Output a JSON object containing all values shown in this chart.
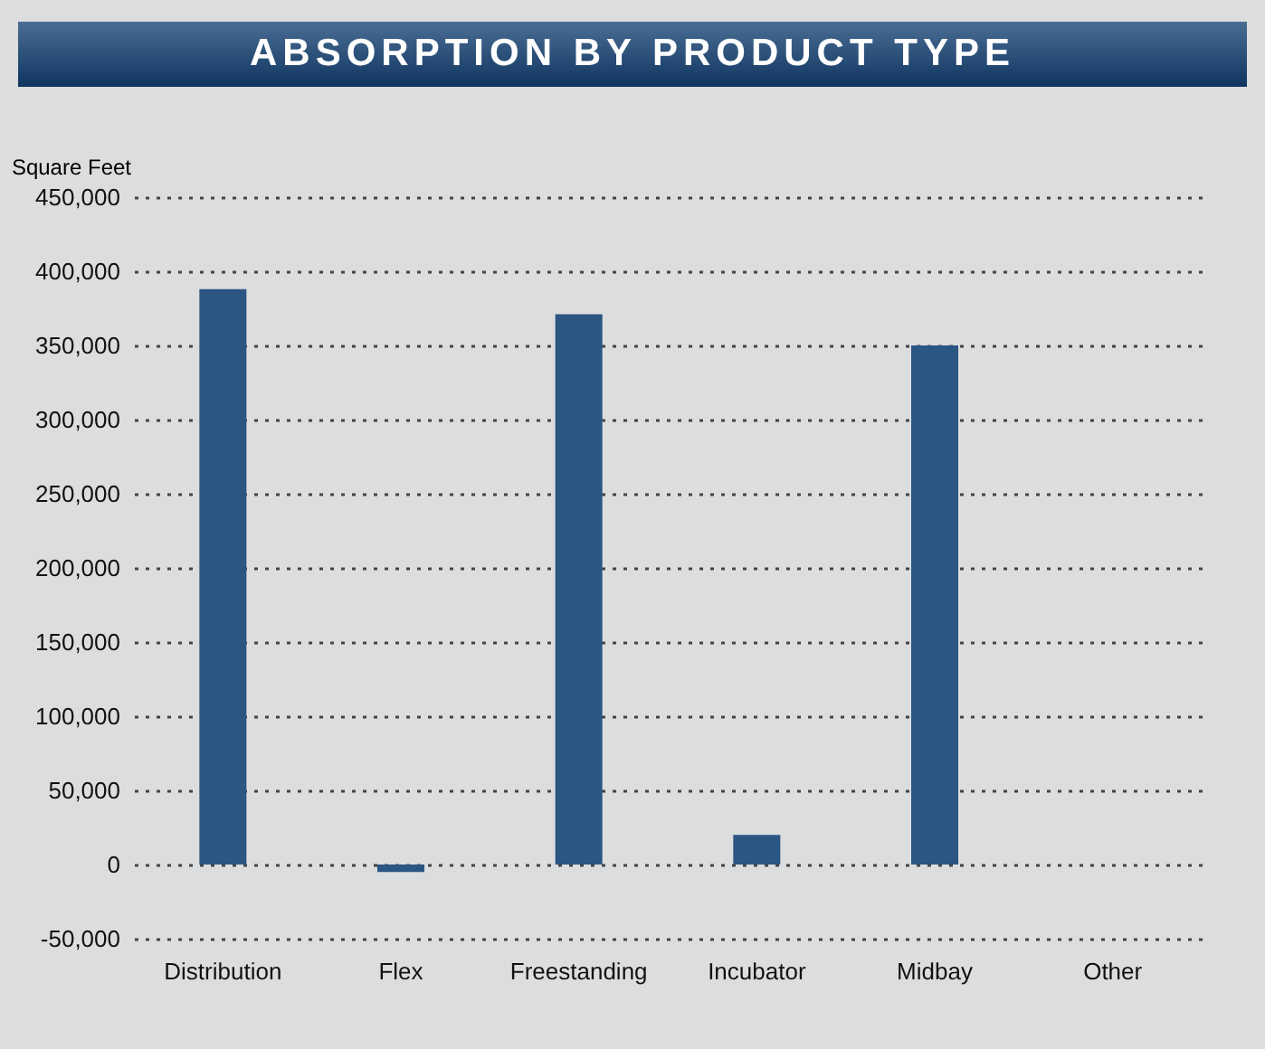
{
  "chart_data": {
    "type": "bar",
    "title": "ABSORPTION BY PRODUCT TYPE",
    "ylabel": "Square Feet",
    "categories": [
      "Distribution",
      "Flex",
      "Freestanding",
      "Incubator",
      "Midbay",
      "Other"
    ],
    "values": [
      388000,
      -5000,
      371000,
      20000,
      350000,
      null
    ],
    "color": "#2b5582",
    "ylim": [
      -50000,
      450000
    ],
    "yticks": [
      {
        "value": -50000,
        "label": "-50,000"
      },
      0,
      {
        "value": 50000,
        "label": "50,000"
      },
      {
        "value": 100000,
        "label": "100,000"
      },
      {
        "value": 150000,
        "label": "150,000"
      },
      {
        "value": 200000,
        "label": "200,000"
      },
      {
        "value": 250000,
        "label": "250,000"
      },
      {
        "value": 300000,
        "label": "300,000"
      },
      {
        "value": 350000,
        "label": "350,000"
      },
      {
        "value": 400000,
        "label": "400,000"
      },
      {
        "value": 450000,
        "label": "450,000"
      }
    ],
    "grid": "y"
  }
}
